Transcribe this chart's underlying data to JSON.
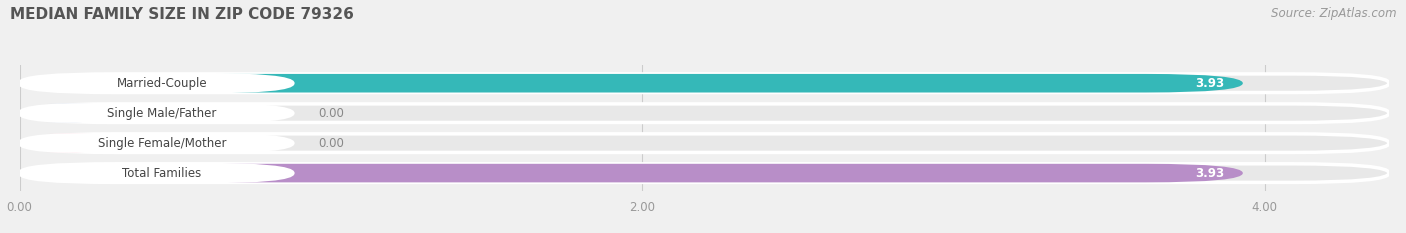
{
  "title": "MEDIAN FAMILY SIZE IN ZIP CODE 79326",
  "source": "Source: ZipAtlas.com",
  "categories": [
    "Married-Couple",
    "Single Male/Father",
    "Single Female/Mother",
    "Total Families"
  ],
  "values": [
    3.93,
    0.0,
    0.0,
    3.93
  ],
  "bar_colors": [
    "#35b8b8",
    "#9bafd4",
    "#f7a8bc",
    "#b88ec8"
  ],
  "label_bg_colors": [
    "#ffffff",
    "#ffffff",
    "#ffffff",
    "#ffffff"
  ],
  "track_color": "#e8e8e8",
  "xlim": [
    0,
    4.4
  ],
  "xmax": 4.4,
  "xticks": [
    0.0,
    2.0,
    4.0
  ],
  "xtick_labels": [
    "0.00",
    "2.00",
    "4.00"
  ],
  "bar_height": 0.62,
  "background_color": "#f0f0f0",
  "title_fontsize": 11,
  "label_fontsize": 8.5,
  "value_fontsize": 8.5,
  "source_fontsize": 8.5
}
